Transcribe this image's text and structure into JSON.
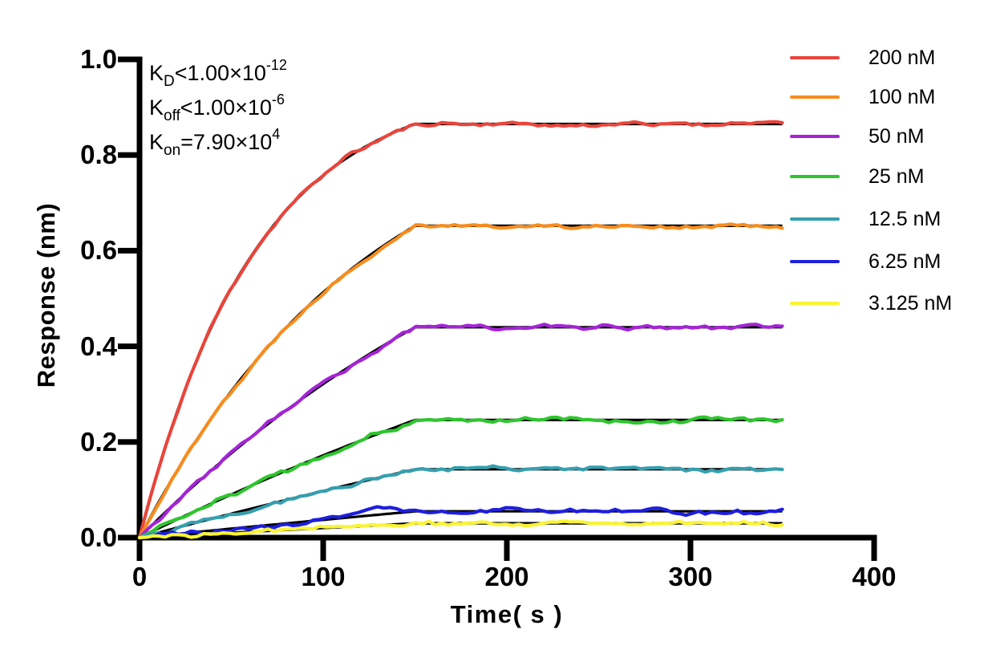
{
  "figure": {
    "kinetics": {
      "lines": [
        {
          "base": "K",
          "sub": "D",
          "mid": "<1.00×10",
          "sup": "-12"
        },
        {
          "base": "K",
          "sub": "off",
          "mid": "<1.00×10",
          "sup": "-6"
        },
        {
          "base": "K",
          "sub": "on",
          "mid": "=7.90×10",
          "sup": "4"
        }
      ]
    }
  },
  "chart_data": {
    "type": "line",
    "title": "",
    "xlabel": "Time( s )",
    "ylabel": "Response (nm)",
    "xlim": [
      0,
      400
    ],
    "ylim": [
      0,
      1.0
    ],
    "x_ticks": [
      0,
      100,
      200,
      300,
      400
    ],
    "x_tick_labels": [
      "0",
      "100",
      "200",
      "300",
      "400"
    ],
    "y_ticks": [
      0,
      0.2,
      0.4,
      0.6,
      0.8,
      1.0
    ],
    "y_tick_labels": [
      "0.0",
      "0.2",
      "0.4",
      "0.6",
      "0.8",
      "1.0"
    ],
    "grid": false,
    "legend_position": "right",
    "association_end_s": 150,
    "trace_end_s": 350,
    "fit_color": "#000000",
    "series": [
      {
        "name": "200 nM",
        "concentration_nM": 200,
        "color": "#E8453C",
        "plateau_nm": 0.865,
        "k_obs_per_s": 0.0158,
        "noise_amp": 0.0055,
        "seed": 11
      },
      {
        "name": "100 nM",
        "concentration_nM": 100,
        "color": "#F78C1E",
        "plateau_nm": 0.652,
        "k_obs_per_s": 0.0079,
        "noise_amp": 0.0055,
        "seed": 22
      },
      {
        "name": "50 nM",
        "concentration_nM": 50,
        "color": "#A424D6",
        "plateau_nm": 0.44,
        "k_obs_per_s": 0.00395,
        "noise_amp": 0.0065,
        "seed": 33
      },
      {
        "name": "25 nM",
        "concentration_nM": 25,
        "color": "#2EC52E",
        "plateau_nm": 0.246,
        "k_obs_per_s": 0.001975,
        "noise_amp": 0.006,
        "seed": 44
      },
      {
        "name": "12.5 nM",
        "concentration_nM": 12.5,
        "color": "#359FAE",
        "plateau_nm": 0.143,
        "k_obs_per_s": 0.000988,
        "noise_amp": 0.0065,
        "seed": 55
      },
      {
        "name": "6.25 nM",
        "concentration_nM": 6.25,
        "color": "#1E1EDC",
        "plateau_nm": 0.055,
        "k_obs_per_s": 0.000494,
        "noise_amp": 0.0075,
        "seed": 66,
        "bump": {
          "center_s": 126,
          "width_s": 14,
          "height_nm": 0.013
        }
      },
      {
        "name": "3.125 nM",
        "concentration_nM": 3.125,
        "color": "#F9F432",
        "plateau_nm": 0.03,
        "k_obs_per_s": 0.000247,
        "noise_amp": 0.0065,
        "seed": 77
      }
    ]
  }
}
